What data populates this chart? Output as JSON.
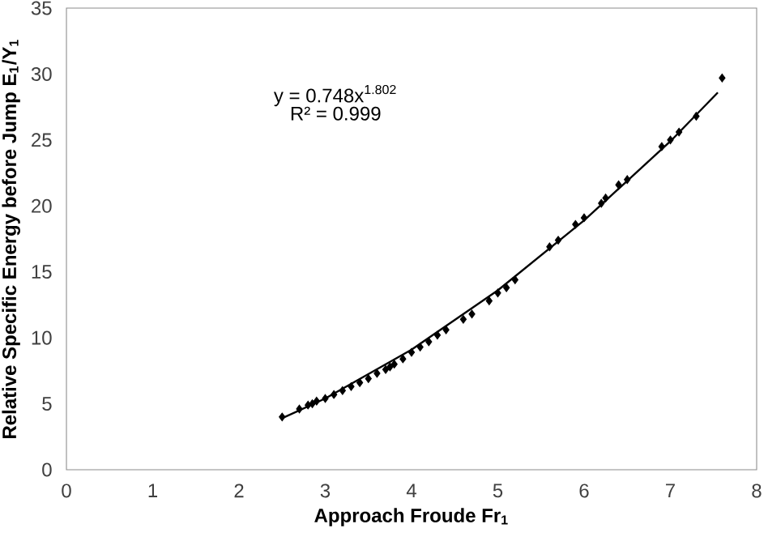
{
  "chart_data": {
    "type": "scatter",
    "xlabel": "Approach Froude Fr$_{1}$",
    "ylabel": "Relative Specific Energy before Jump E$_{1}$/Y$_{1}$",
    "annotations": [
      "y = 0.748x$^{1.802}$",
      "R² = 0.999"
    ],
    "xlim": [
      0,
      8
    ],
    "ylim": [
      0,
      35
    ],
    "xticks": [
      0,
      1,
      2,
      3,
      4,
      5,
      6,
      7,
      8
    ],
    "yticks": [
      0,
      5,
      10,
      15,
      20,
      25,
      30,
      35
    ],
    "series": [
      {
        "marker": "diamond",
        "color": "#000000",
        "x": [
          2.5,
          2.7,
          2.8,
          2.85,
          2.9,
          3.0,
          3.1,
          3.2,
          3.3,
          3.4,
          3.5,
          3.6,
          3.7,
          3.75,
          3.8,
          3.9,
          4.0,
          4.1,
          4.2,
          4.3,
          4.4,
          4.6,
          4.7,
          4.9,
          5.0,
          5.1,
          5.2,
          5.6,
          5.7,
          5.9,
          6.0,
          6.2,
          6.25,
          6.4,
          6.5,
          6.9,
          7.0,
          7.1,
          7.3,
          7.6
        ],
        "values": [
          4.0,
          4.6,
          4.9,
          5.0,
          5.2,
          5.4,
          5.7,
          6.0,
          6.3,
          6.6,
          6.9,
          7.3,
          7.6,
          7.8,
          8.0,
          8.4,
          8.9,
          9.3,
          9.7,
          10.2,
          10.6,
          11.4,
          11.8,
          12.8,
          13.4,
          13.8,
          14.4,
          16.9,
          17.4,
          18.6,
          19.1,
          20.2,
          20.6,
          21.6,
          22.0,
          24.5,
          25.0,
          25.6,
          26.8,
          29.7
        ]
      },
      {
        "type": "line",
        "marker": "none",
        "line_style": "solid",
        "color": "#000000",
        "x": [
          2.5,
          3.0,
          4.0,
          5.0,
          6.0,
          7.0,
          7.55
        ],
        "values": [
          3.9,
          5.4,
          9.1,
          13.6,
          18.9,
          24.9,
          28.6
        ]
      }
    ]
  }
}
